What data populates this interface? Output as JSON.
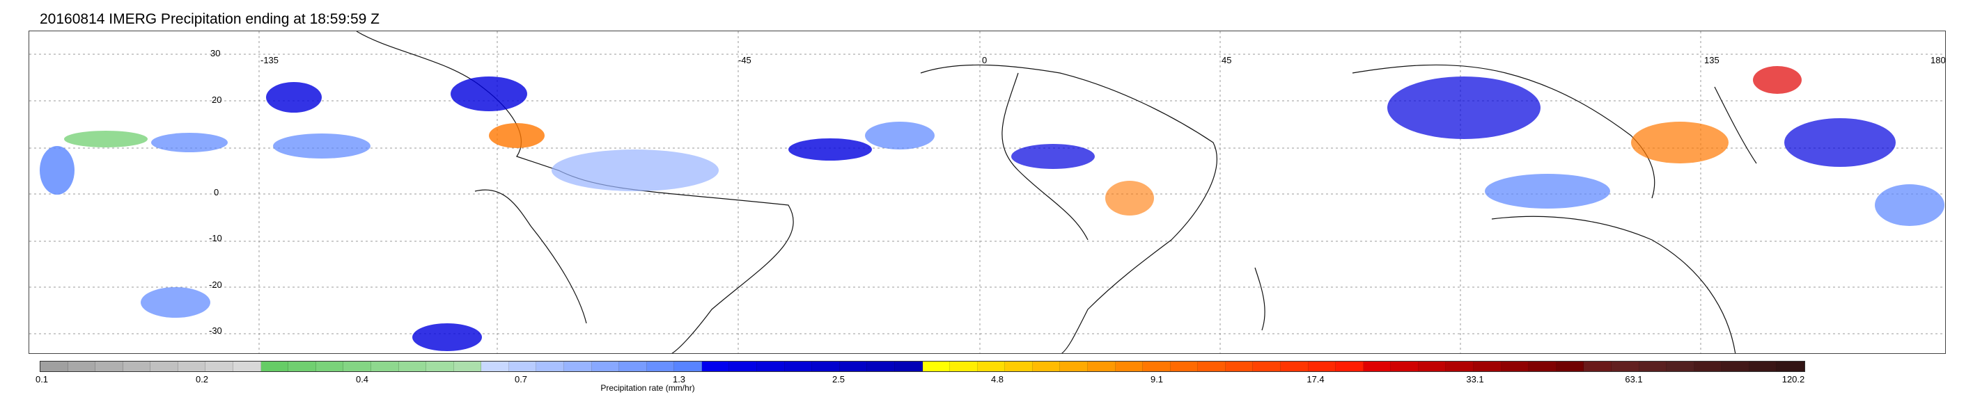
{
  "title": "20160814 IMERG Precipitation ending at 18:59:59 Z",
  "map": {
    "lon_labels": [
      "-135",
      "-45",
      "0",
      "45",
      "135",
      "180"
    ],
    "lat_labels": [
      "30",
      "20",
      "0",
      "-10",
      "-20",
      "-30"
    ]
  },
  "colorbar": {
    "label": "Precipitation rate (mm/hr)",
    "tick_labels": [
      "0.1",
      "0.2",
      "0.4",
      "0.7",
      "1.3",
      "2.5",
      "4.8",
      "9.1",
      "17.4",
      "33.1",
      "63.1",
      "120.2"
    ],
    "colors": [
      "#a0a0a0",
      "#a8a8a8",
      "#b0b0b0",
      "#b8b8b8",
      "#c0c0c0",
      "#c8c8c8",
      "#d0d0d0",
      "#d8d8d8",
      "#66cc66",
      "#70cf70",
      "#7ad27a",
      "#84d584",
      "#8ed88e",
      "#98db98",
      "#a2dea2",
      "#acdfac",
      "#c8d8ff",
      "#b8ccff",
      "#a8c0ff",
      "#98b4ff",
      "#88a8ff",
      "#789cff",
      "#6890ff",
      "#5884ff",
      "#0000ee",
      "#0000e6",
      "#0000de",
      "#0000d6",
      "#0000ce",
      "#0000c6",
      "#0000be",
      "#0000b6",
      "#ffff00",
      "#ffee00",
      "#ffdd00",
      "#ffcc00",
      "#ffbb00",
      "#ffaa00",
      "#ff9900",
      "#ff8800",
      "#ff7700",
      "#ff6a00",
      "#ff5d00",
      "#ff5000",
      "#ff4300",
      "#ff3600",
      "#ff2900",
      "#ff1c00",
      "#e00000",
      "#d00000",
      "#c00000",
      "#b00000",
      "#a00000",
      "#900000",
      "#800000",
      "#700000",
      "#6a1a1a",
      "#622020",
      "#5a2020",
      "#522020",
      "#4a1a1a",
      "#421818",
      "#3a1616",
      "#321414"
    ]
  }
}
